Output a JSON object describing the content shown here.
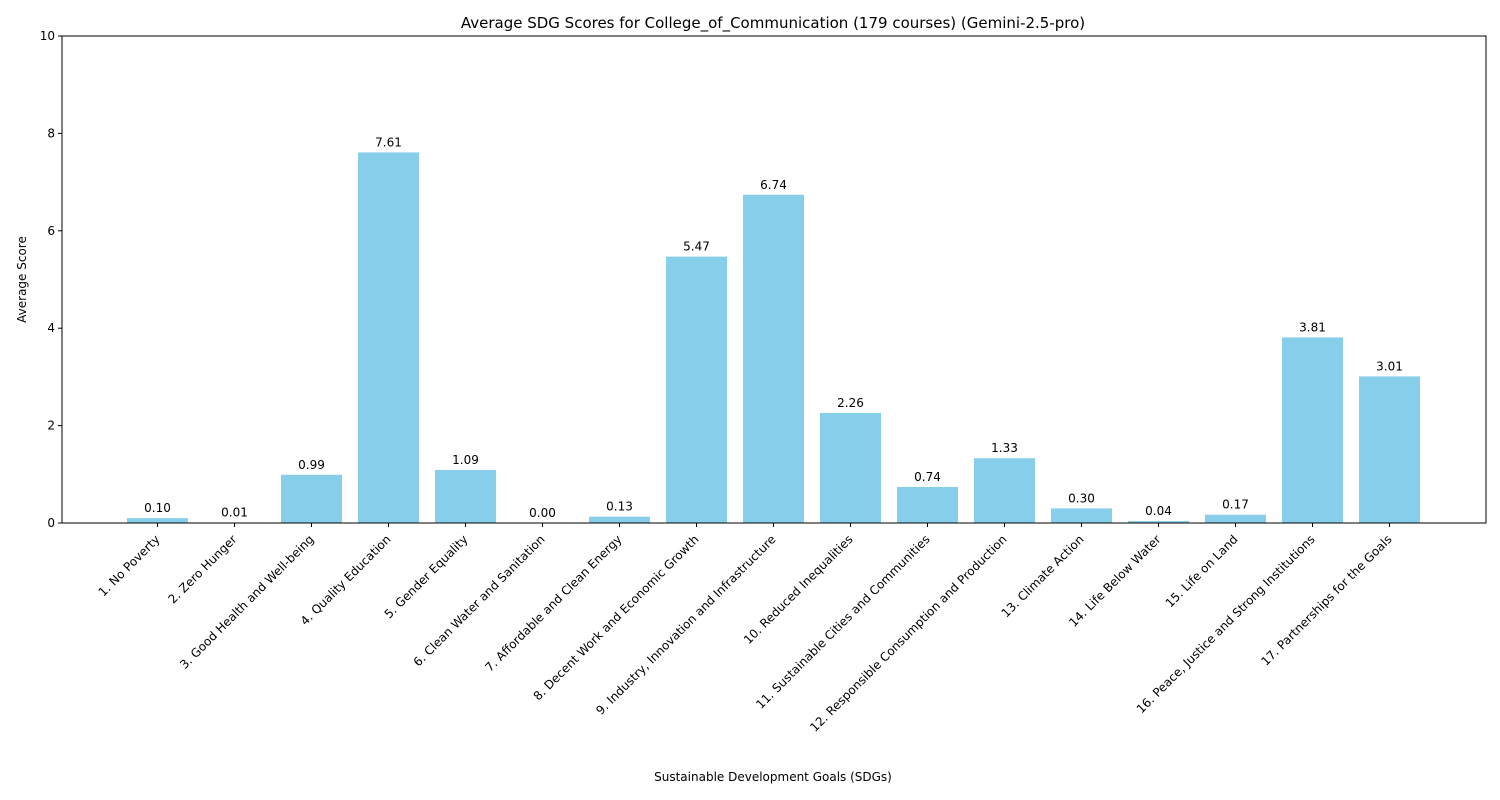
{
  "chart_data": {
    "type": "bar",
    "title": "Average SDG Scores for College_of_Communication (179 courses) (Gemini-2.5-pro)",
    "xlabel": "Sustainable Development Goals (SDGs)",
    "ylabel": "Average Score",
    "ylim": [
      0,
      10
    ],
    "yticks": [
      "0",
      "2",
      "4",
      "6",
      "8",
      "10"
    ],
    "grid": false,
    "bar_color": "#87ceeb",
    "categories": [
      "1. No Poverty",
      "2. Zero Hunger",
      "3. Good Health and Well-being",
      "4. Quality Education",
      "5. Gender Equality",
      "6. Clean Water and Sanitation",
      "7. Affordable and Clean Energy",
      "8. Decent Work and Economic Growth",
      "9. Industry, Innovation and Infrastructure",
      "10. Reduced Inequalities",
      "11. Sustainable Cities and Communities",
      "12. Responsible Consumption and Production",
      "13. Climate Action",
      "14. Life Below Water",
      "15. Life on Land",
      "16. Peace, Justice and Strong Institutions",
      "17. Partnerships for the Goals"
    ],
    "values": [
      0.1,
      0.01,
      0.99,
      7.61,
      1.09,
      0.0,
      0.13,
      5.47,
      6.74,
      2.26,
      0.74,
      1.33,
      0.3,
      0.04,
      0.17,
      3.81,
      3.01
    ],
    "value_labels": [
      "0.10",
      "0.01",
      "0.99",
      "7.61",
      "1.09",
      "0.00",
      "0.13",
      "5.47",
      "6.74",
      "2.26",
      "0.74",
      "1.33",
      "0.30",
      "0.04",
      "0.17",
      "3.81",
      "3.01"
    ]
  }
}
